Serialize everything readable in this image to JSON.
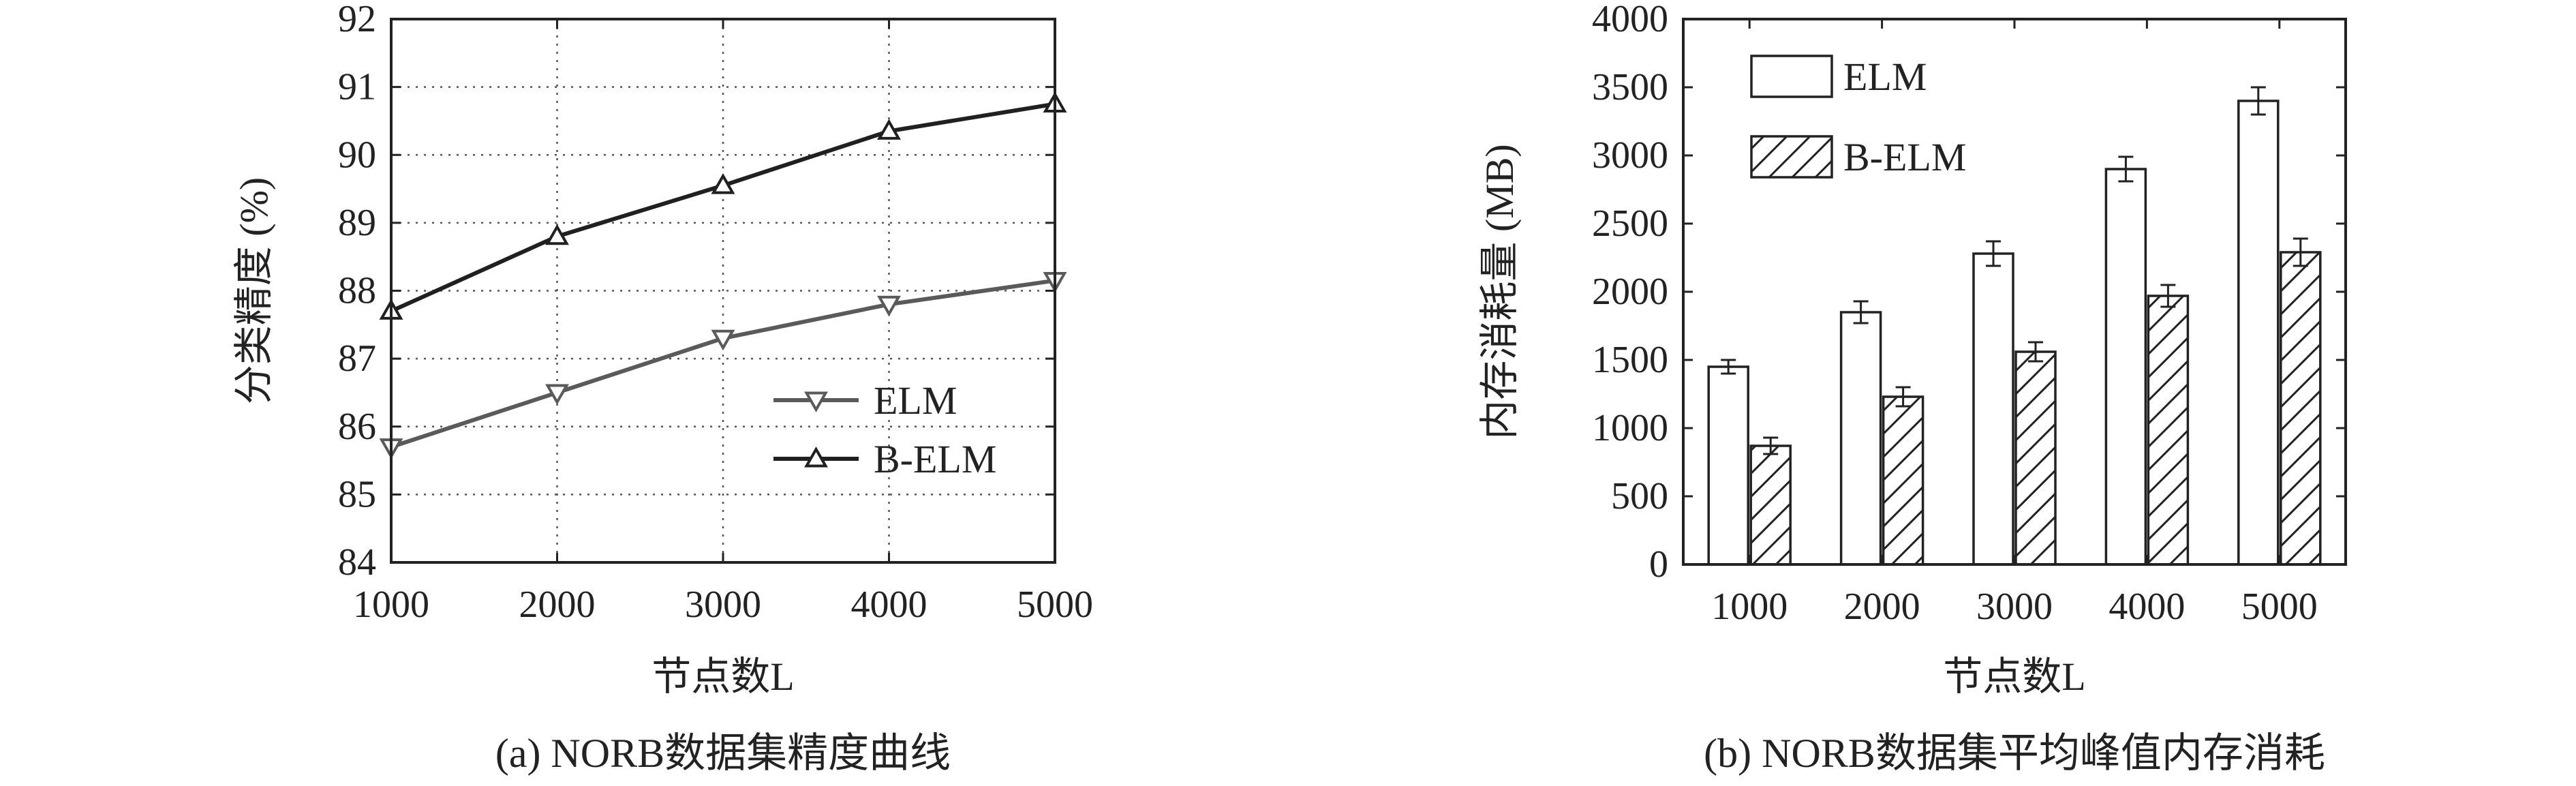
{
  "colors": {
    "elm": "#5a5a5a",
    "belm": "#202020",
    "grid": "#555555",
    "axis": "#222222"
  },
  "chart_data": [
    {
      "type": "line",
      "caption": "(a) NORB数据集精度曲线",
      "xlabel": "节点数L",
      "ylabel": "分类精度 (%)",
      "x": [
        1000,
        2000,
        3000,
        4000,
        5000
      ],
      "x_ticks": [
        "1000",
        "2000",
        "3000",
        "4000",
        "5000"
      ],
      "y_ticks": [
        "84",
        "85",
        "86",
        "87",
        "88",
        "89",
        "90",
        "91",
        "92"
      ],
      "xlim": [
        1000,
        5000
      ],
      "ylim": [
        84,
        92
      ],
      "grid": true,
      "legend_position": "lower-right",
      "series": [
        {
          "name": "ELM",
          "marker": "triangle-down",
          "values": [
            85.7,
            86.5,
            87.3,
            87.8,
            88.15
          ]
        },
        {
          "name": "B-ELM",
          "marker": "triangle-up",
          "values": [
            87.7,
            88.8,
            89.55,
            90.35,
            90.75
          ]
        }
      ]
    },
    {
      "type": "bar",
      "caption": "(b) NORB数据集平均峰值内存消耗",
      "xlabel": "节点数L",
      "ylabel": "内存消耗量 (MB)",
      "categories": [
        "1000",
        "2000",
        "3000",
        "4000",
        "5000"
      ],
      "y_ticks": [
        "0",
        "500",
        "1000",
        "1500",
        "2000",
        "2500",
        "3000",
        "3500",
        "4000"
      ],
      "ylim": [
        0,
        4000
      ],
      "grid": false,
      "legend_position": "top-left",
      "series": [
        {
          "name": "ELM",
          "fill": "white",
          "values": [
            1450,
            1850,
            2280,
            2900,
            3400
          ],
          "errors": [
            50,
            80,
            90,
            90,
            100
          ]
        },
        {
          "name": "B-ELM",
          "fill": "hatched",
          "values": [
            870,
            1230,
            1560,
            1970,
            2290
          ],
          "errors": [
            60,
            70,
            70,
            80,
            100
          ]
        }
      ]
    }
  ]
}
